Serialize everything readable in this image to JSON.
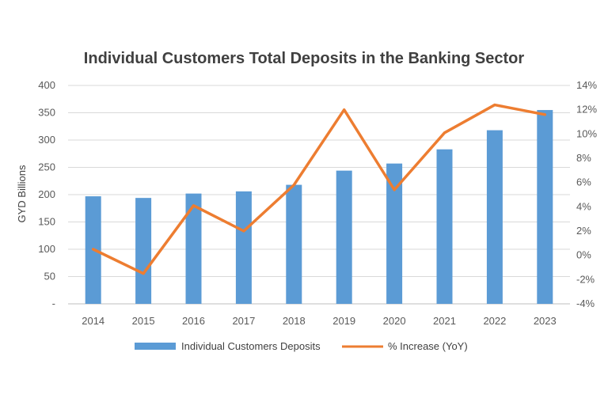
{
  "chart_data": {
    "type": "bar",
    "title": "Individual Customers Total Deposits in the Banking Sector",
    "categories": [
      "2014",
      "2015",
      "2016",
      "2017",
      "2018",
      "2019",
      "2020",
      "2021",
      "2022",
      "2023"
    ],
    "series": [
      {
        "name": "Individual Customers Deposits",
        "type": "bar",
        "axis": "left",
        "color": "#5B9BD5",
        "values": [
          197,
          194,
          202,
          206,
          218,
          244,
          257,
          283,
          318,
          355
        ]
      },
      {
        "name": "% Increase (YoY)",
        "type": "line",
        "axis": "right",
        "color": "#ED7D31",
        "values": [
          0.5,
          -1.5,
          4.1,
          2.0,
          5.8,
          12.0,
          5.4,
          10.1,
          12.4,
          11.6
        ]
      }
    ],
    "ylabel": "GYD Billions",
    "ylim": [
      0,
      400
    ],
    "yticks": [
      "-",
      "50",
      "100",
      "150",
      "200",
      "250",
      "300",
      "350",
      "400"
    ],
    "y2lim": [
      -4,
      14
    ],
    "y2ticks": [
      "-4%",
      "-2%",
      "0%",
      "2%",
      "4%",
      "6%",
      "8%",
      "10%",
      "12%",
      "14%"
    ],
    "grid": true,
    "legend": "bottom"
  }
}
